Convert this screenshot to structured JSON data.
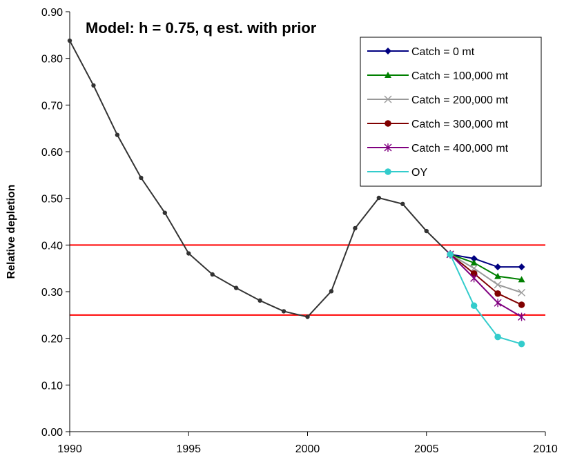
{
  "chart_data": {
    "type": "line",
    "title": "Model: h = 0.75, q est. with prior",
    "xlabel": "",
    "ylabel": "Relative depletion",
    "xlim": [
      1990,
      2010
    ],
    "ylim": [
      0,
      0.9
    ],
    "x_ticks": [
      1990,
      1995,
      2000,
      2005,
      2010
    ],
    "y_ticks": [
      "0.00",
      "0.10",
      "0.20",
      "0.30",
      "0.40",
      "0.50",
      "0.60",
      "0.70",
      "0.80",
      "0.90"
    ],
    "grid": false,
    "legend_position": "top-right",
    "reference_lines": [
      {
        "y": 0.4,
        "color": "#ff0000"
      },
      {
        "y": 0.25,
        "color": "#ff0000"
      }
    ],
    "history": {
      "color": "#333333",
      "marker": "dot",
      "x": [
        1990,
        1991,
        1992,
        1993,
        1994,
        1995,
        1996,
        1997,
        1998,
        1999,
        2000,
        2001,
        2002,
        2003,
        2004,
        2005,
        2006
      ],
      "y": [
        0.838,
        0.742,
        0.636,
        0.544,
        0.469,
        0.382,
        0.337,
        0.308,
        0.281,
        0.258,
        0.246,
        0.301,
        0.436,
        0.501,
        0.488,
        0.43,
        0.38
      ]
    },
    "series": [
      {
        "name": "Catch = 0 mt",
        "color": "#000080",
        "marker": "diamond",
        "x": [
          2006,
          2007,
          2008,
          2009
        ],
        "y": [
          0.38,
          0.371,
          0.353,
          0.353
        ]
      },
      {
        "name": "Catch = 100,000 mt",
        "color": "#008000",
        "marker": "triangle",
        "x": [
          2006,
          2007,
          2008,
          2009
        ],
        "y": [
          0.38,
          0.362,
          0.333,
          0.326
        ]
      },
      {
        "name": "Catch = 200,000 mt",
        "color": "#999999",
        "marker": "x",
        "x": [
          2006,
          2007,
          2008,
          2009
        ],
        "y": [
          0.38,
          0.35,
          0.315,
          0.298
        ]
      },
      {
        "name": "Catch = 300,000 mt",
        "color": "#800000",
        "marker": "circle",
        "x": [
          2006,
          2007,
          2008,
          2009
        ],
        "y": [
          0.38,
          0.339,
          0.296,
          0.272
        ]
      },
      {
        "name": "Catch = 400,000 mt",
        "color": "#800080",
        "marker": "star",
        "x": [
          2006,
          2007,
          2008,
          2009
        ],
        "y": [
          0.38,
          0.329,
          0.276,
          0.246
        ]
      },
      {
        "name": "OY",
        "color": "#33cccc",
        "marker": "circle",
        "x": [
          2006,
          2007,
          2008,
          2009
        ],
        "y": [
          0.38,
          0.27,
          0.203,
          0.188
        ]
      }
    ]
  }
}
